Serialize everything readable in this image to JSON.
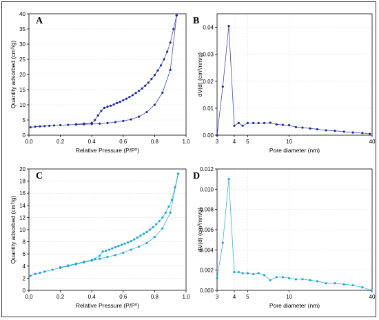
{
  "colors": {
    "dark": "#1f2a9e",
    "light": "#1aa6d6"
  },
  "chart_data": [
    {
      "panel": "A",
      "type": "line",
      "xlabel": "Relative Pressure (P/P⁰)",
      "ylabel": "Quantity adsorbed (cm³/g)",
      "xlim": [
        0,
        1.0
      ],
      "ylim": [
        0,
        40
      ],
      "xticks": [
        "0.0",
        "0.2",
        "0.4",
        "0.6",
        "0.8",
        "1.0"
      ],
      "yticks": [
        "0",
        "5",
        "10",
        "15",
        "20",
        "25",
        "30",
        "35",
        "40"
      ],
      "xtick_vals": [
        0,
        0.2,
        0.4,
        0.6,
        0.8,
        1.0
      ],
      "ytick_vals": [
        0,
        5,
        10,
        15,
        20,
        25,
        30,
        35,
        40
      ],
      "series": [
        {
          "x": [
            0.01,
            0.04,
            0.07,
            0.1,
            0.13,
            0.16,
            0.2,
            0.25,
            0.3,
            0.35,
            0.4,
            0.45,
            0.5,
            0.55,
            0.6,
            0.65,
            0.7,
            0.75,
            0.8,
            0.85,
            0.9,
            0.94
          ],
          "y": [
            2.6,
            2.8,
            2.9,
            3.0,
            3.1,
            3.2,
            3.3,
            3.4,
            3.5,
            3.6,
            3.7,
            3.8,
            4.0,
            4.3,
            4.7,
            5.2,
            6.1,
            7.6,
            10.0,
            14.0,
            21.5,
            39.5
          ]
        },
        {
          "x": [
            0.94,
            0.92,
            0.9,
            0.88,
            0.86,
            0.84,
            0.82,
            0.8,
            0.78,
            0.76,
            0.74,
            0.72,
            0.7,
            0.68,
            0.66,
            0.64,
            0.62,
            0.6,
            0.58,
            0.56,
            0.54,
            0.52,
            0.5,
            0.48,
            0.46,
            0.44,
            0.42,
            0.4,
            0.35,
            0.3
          ],
          "y": [
            39.5,
            35.0,
            30.5,
            27.5,
            25.0,
            23.0,
            21.3,
            19.8,
            18.5,
            17.3,
            16.3,
            15.4,
            14.6,
            13.9,
            13.2,
            12.6,
            12.0,
            11.5,
            11.0,
            10.6,
            10.1,
            9.7,
            9.4,
            9.0,
            8.0,
            6.5,
            5.0,
            4.0,
            3.8,
            3.6
          ]
        }
      ]
    },
    {
      "panel": "B",
      "type": "line",
      "xlabel": "Pore diameter (nm)",
      "ylabel": "dV(d) (cm³/nm/g)",
      "xscale": "log",
      "xlim": [
        3,
        40
      ],
      "ylim": [
        0,
        0.045
      ],
      "xticks": [
        "3",
        "4",
        "5",
        "10",
        "40"
      ],
      "xtick_vals": [
        3,
        4,
        5,
        10,
        40
      ],
      "yticks": [
        "0.00",
        "0.01",
        "0.02",
        "0.03",
        "0.04"
      ],
      "ytick_vals": [
        0,
        0.01,
        0.02,
        0.03,
        0.04
      ],
      "series": [
        {
          "x": [
            3.0,
            3.3,
            3.65,
            4.0,
            4.3,
            4.6,
            5.0,
            5.5,
            6.0,
            6.6,
            7.3,
            8.1,
            9.0,
            10.0,
            11.2,
            12.5,
            14.2,
            16.0,
            18.5,
            21.5,
            25.0,
            29.0,
            34.0,
            38.5
          ],
          "y": [
            0.0,
            0.018,
            0.0405,
            0.0035,
            0.0045,
            0.0035,
            0.0045,
            0.0045,
            0.0045,
            0.0045,
            0.0046,
            0.004,
            0.0038,
            0.0037,
            0.003,
            0.0028,
            0.0025,
            0.0022,
            0.0018,
            0.0016,
            0.0013,
            0.001,
            0.0008,
            0.0005
          ]
        }
      ]
    },
    {
      "panel": "C",
      "type": "line",
      "xlabel": "Relative Pressure (P/P⁰)",
      "ylabel": "Quantity adsorbed (cm³/g)",
      "xlim": [
        0,
        1.0
      ],
      "ylim": [
        0,
        20
      ],
      "xticks": [
        "0.0",
        "0.2",
        "0.4",
        "0.6",
        "0.8",
        "1.0"
      ],
      "xtick_vals": [
        0,
        0.2,
        0.4,
        0.6,
        0.8,
        1.0
      ],
      "yticks": [
        "0",
        "2",
        "4",
        "6",
        "8",
        "10",
        "12",
        "14",
        "16",
        "18",
        "20"
      ],
      "ytick_vals": [
        0,
        2,
        4,
        6,
        8,
        10,
        12,
        14,
        16,
        18,
        20
      ],
      "series": [
        {
          "x": [
            0.01,
            0.04,
            0.07,
            0.1,
            0.15,
            0.2,
            0.25,
            0.3,
            0.35,
            0.4,
            0.45,
            0.5,
            0.55,
            0.6,
            0.65,
            0.7,
            0.75,
            0.8,
            0.85,
            0.9,
            0.95
          ],
          "y": [
            2.4,
            2.7,
            2.9,
            3.1,
            3.4,
            3.7,
            4.0,
            4.3,
            4.6,
            4.9,
            5.2,
            5.5,
            5.8,
            6.2,
            6.7,
            7.2,
            7.8,
            8.8,
            10.2,
            12.8,
            19.2
          ]
        },
        {
          "x": [
            0.95,
            0.93,
            0.91,
            0.89,
            0.87,
            0.85,
            0.83,
            0.81,
            0.79,
            0.77,
            0.75,
            0.73,
            0.71,
            0.69,
            0.67,
            0.65,
            0.63,
            0.61,
            0.59,
            0.57,
            0.55,
            0.53,
            0.51,
            0.49,
            0.47,
            0.45,
            0.42,
            0.4,
            0.35,
            0.3,
            0.25,
            0.2
          ],
          "y": [
            19.2,
            17.0,
            14.9,
            13.8,
            12.8,
            12.0,
            11.4,
            10.9,
            10.4,
            10.0,
            9.6,
            9.3,
            9.0,
            8.7,
            8.4,
            8.1,
            7.9,
            7.7,
            7.5,
            7.3,
            7.1,
            6.9,
            6.7,
            6.5,
            6.4,
            5.7,
            5.2,
            5.0,
            4.7,
            4.4,
            4.1,
            3.8
          ]
        }
      ]
    },
    {
      "panel": "D",
      "type": "line",
      "xlabel": "Pore diameter (nm)",
      "ylabel": "dV(d) (cm³/nm/g)",
      "xscale": "log",
      "xlim": [
        3,
        40
      ],
      "ylim": [
        0,
        0.012
      ],
      "xticks": [
        "3",
        "4",
        "5",
        "10",
        "40"
      ],
      "xtick_vals": [
        3,
        4,
        5,
        10,
        40
      ],
      "yticks": [
        "0.000",
        "0.002",
        "0.004",
        "0.006",
        "0.008",
        "0.010",
        "0.012"
      ],
      "ytick_vals": [
        0,
        0.002,
        0.004,
        0.006,
        0.008,
        0.01,
        0.012
      ],
      "series": [
        {
          "x": [
            3.0,
            3.3,
            3.65,
            4.0,
            4.3,
            4.6,
            5.0,
            5.5,
            6.0,
            6.6,
            7.3,
            8.1,
            9.0,
            10.0,
            11.2,
            12.5,
            14.2,
            16.0,
            18.5,
            21.5,
            25.0,
            29.0,
            34.0,
            39.5
          ],
          "y": [
            0.0012,
            0.0047,
            0.011,
            0.0018,
            0.0018,
            0.0017,
            0.0017,
            0.0016,
            0.0017,
            0.0015,
            0.001,
            0.0013,
            0.0013,
            0.0012,
            0.0011,
            0.0011,
            0.001,
            0.0009,
            0.0007,
            0.0007,
            0.0006,
            0.0005,
            0.0003,
            0.0
          ]
        }
      ]
    }
  ]
}
